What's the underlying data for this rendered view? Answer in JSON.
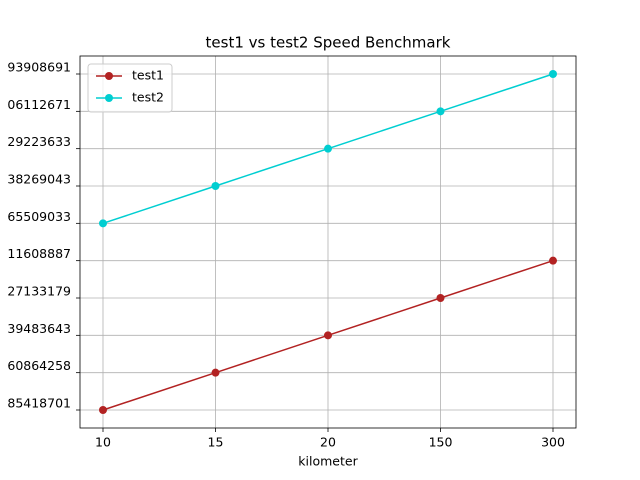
{
  "chart_data": {
    "type": "line",
    "title": "test1 vs test2 Speed Benchmark",
    "x_label": "kilometer",
    "categories": [
      "10",
      "15",
      "20",
      "150",
      "300"
    ],
    "y_categories": [
      "85418701",
      "60864258",
      "39483643",
      "27133179",
      "11608887",
      "65509033",
      "38269043",
      "29223633",
      "06112671",
      "93908691"
    ],
    "series": [
      {
        "name": "test1",
        "color": "#b22222",
        "values": [
          "85418701",
          "60864258",
          "39483643",
          "27133179",
          "11608887"
        ]
      },
      {
        "name": "test2",
        "color": "#00ced1",
        "values": [
          "65509033",
          "38269043",
          "29223633",
          "06112671",
          "93908691"
        ]
      }
    ],
    "grid": true,
    "legend": "upper-left"
  }
}
